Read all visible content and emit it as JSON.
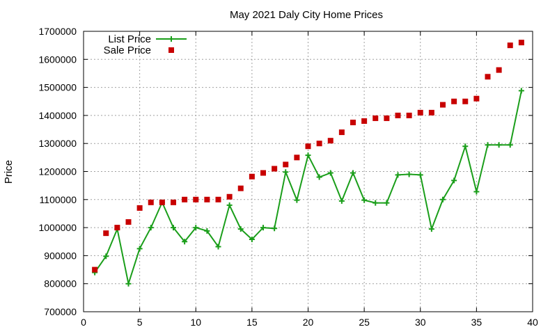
{
  "chart_data": {
    "type": "line",
    "title": "May 2021 Daly City Home Prices",
    "xlabel": "",
    "ylabel": "Price",
    "xlim": [
      0,
      40
    ],
    "ylim": [
      700000,
      1700000
    ],
    "x_ticks": [
      0,
      5,
      10,
      15,
      20,
      25,
      30,
      35,
      40
    ],
    "y_ticks": [
      700000,
      800000,
      900000,
      1000000,
      1100000,
      1200000,
      1300000,
      1400000,
      1500000,
      1600000,
      1700000
    ],
    "grid": true,
    "legend_position": "top-left",
    "series": [
      {
        "name": "List Price",
        "style": "line-with-plus-markers",
        "color": "#1a9e1a",
        "x": [
          1,
          2,
          3,
          4,
          5,
          6,
          7,
          8,
          9,
          10,
          11,
          12,
          13,
          14,
          15,
          16,
          17,
          18,
          19,
          20,
          21,
          22,
          23,
          24,
          25,
          26,
          27,
          28,
          29,
          30,
          31,
          32,
          33,
          34,
          35,
          36,
          37,
          38,
          39
        ],
        "y": [
          840000,
          898000,
          995000,
          800000,
          925000,
          1000000,
          1090000,
          1000000,
          950000,
          1000000,
          988000,
          932000,
          1080000,
          995000,
          958000,
          1000000,
          997000,
          1198000,
          1098000,
          1258000,
          1180000,
          1195000,
          1095000,
          1195000,
          1098000,
          1088000,
          1088000,
          1188000,
          1190000,
          1188000,
          995000,
          1100000,
          1168000,
          1290000,
          1128000,
          1295000,
          1295000,
          1295000,
          1488000
        ]
      },
      {
        "name": "Sale Price",
        "style": "square-markers",
        "color": "#c80000",
        "x": [
          1,
          2,
          3,
          4,
          5,
          6,
          7,
          8,
          9,
          10,
          11,
          12,
          13,
          14,
          15,
          16,
          17,
          18,
          19,
          20,
          21,
          22,
          23,
          24,
          25,
          26,
          27,
          28,
          29,
          30,
          31,
          32,
          33,
          34,
          35,
          36,
          37,
          38,
          39
        ],
        "y": [
          850000,
          980000,
          1000000,
          1020000,
          1070000,
          1090000,
          1090000,
          1090000,
          1100000,
          1100000,
          1100000,
          1100000,
          1110000,
          1140000,
          1182000,
          1195000,
          1210000,
          1225000,
          1250000,
          1290000,
          1300000,
          1310000,
          1340000,
          1375000,
          1380000,
          1390000,
          1390000,
          1400000,
          1400000,
          1410000,
          1410000,
          1438000,
          1450000,
          1450000,
          1460000,
          1538000,
          1562000,
          1650000,
          1660000
        ]
      }
    ]
  }
}
